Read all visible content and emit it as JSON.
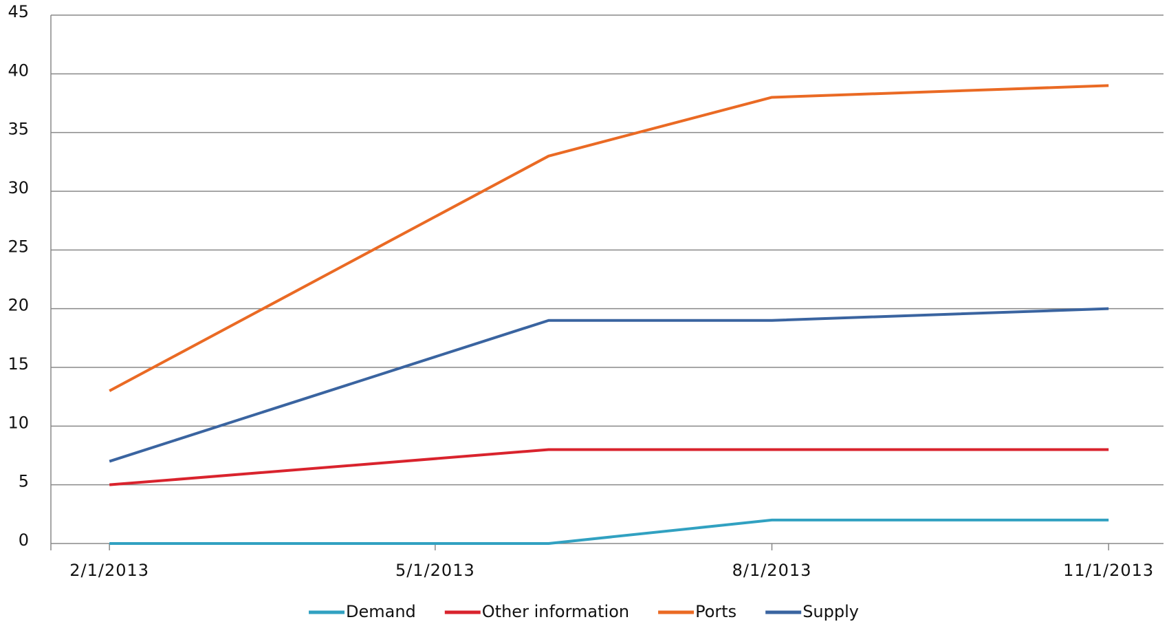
{
  "chart_data": {
    "type": "line",
    "x": [
      "2/1/2013",
      "6/1/2013",
      "8/1/2013",
      "11/1/2013"
    ],
    "series": [
      {
        "name": "Demand",
        "color": "#31a1c1",
        "values": [
          0,
          0,
          2,
          2
        ]
      },
      {
        "name": "Other information",
        "color": "#d9232d",
        "values": [
          5,
          8,
          8,
          8
        ]
      },
      {
        "name": "Ports",
        "color": "#ea6a24",
        "values": [
          13,
          33,
          38,
          39
        ]
      },
      {
        "name": "Supply",
        "color": "#3a64a0",
        "values": [
          7,
          19,
          19,
          20
        ]
      }
    ],
    "xlim": [
      "1/16/2013",
      "11/16/2013"
    ],
    "xticks": [
      "2/1/2013",
      "5/1/2013",
      "8/1/2013",
      "11/1/2013"
    ],
    "ylim": [
      0,
      45
    ],
    "yticks": [
      0,
      5,
      10,
      15,
      20,
      25,
      30,
      35,
      40,
      45
    ],
    "grid": true,
    "legend": "bottom"
  }
}
